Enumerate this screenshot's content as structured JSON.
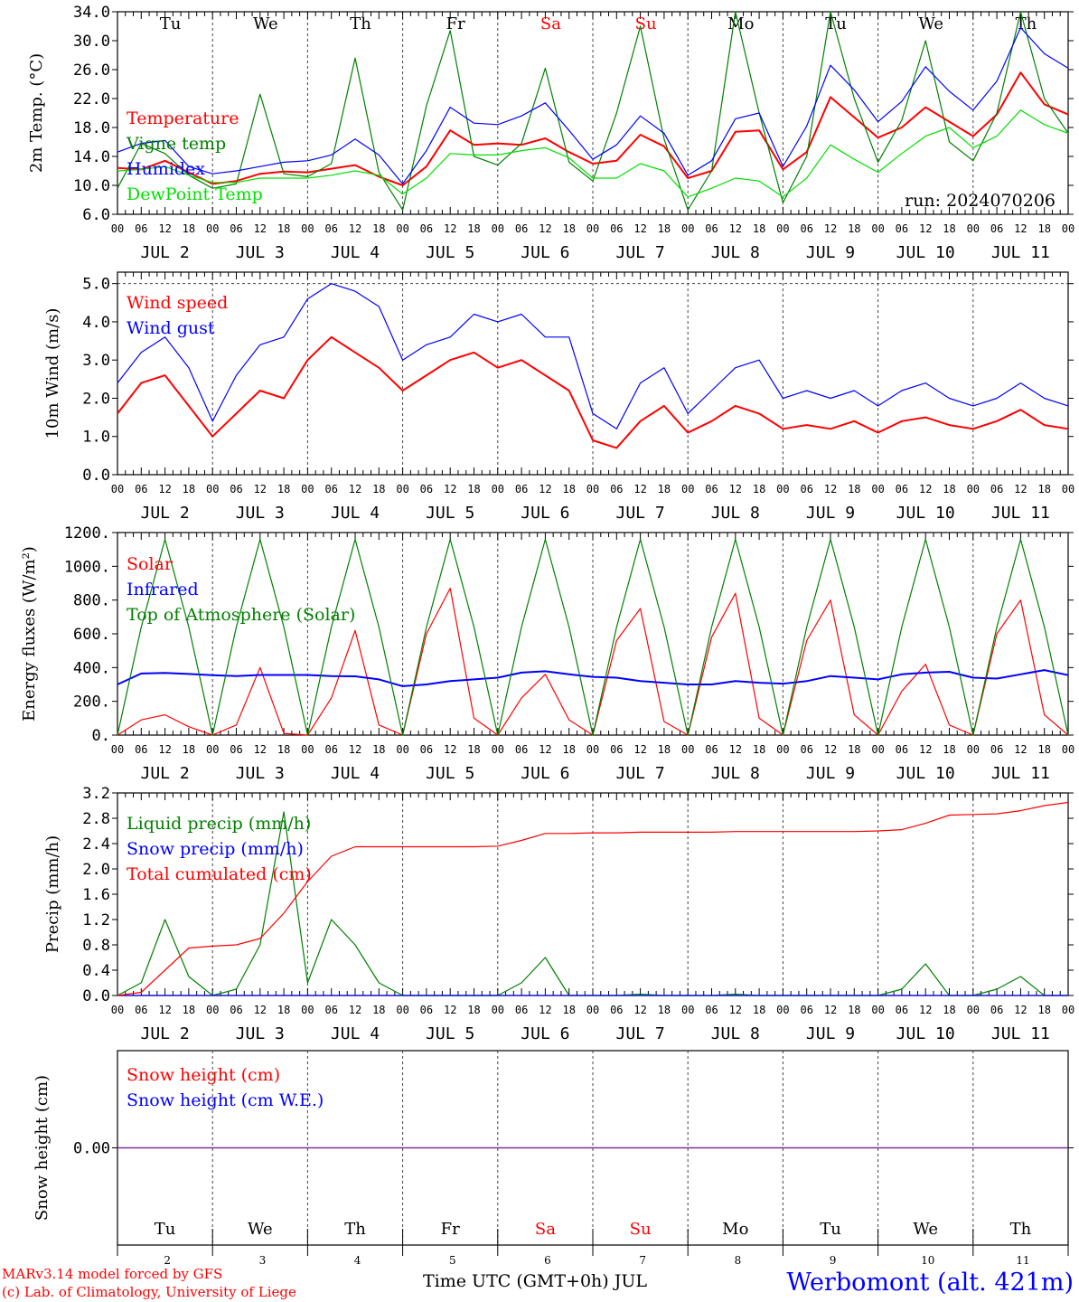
{
  "run_label": "run: 2024070206",
  "days": [
    {
      "dow": "Tu",
      "date": "JUL  2",
      "num": "2",
      "weekend": false
    },
    {
      "dow": "We",
      "date": "JUL  3",
      "num": "3",
      "weekend": false
    },
    {
      "dow": "Th",
      "date": "JUL  4",
      "num": "4",
      "weekend": false
    },
    {
      "dow": "Fr",
      "date": "JUL  5",
      "num": "5",
      "weekend": false
    },
    {
      "dow": "Sa",
      "date": "JUL  6",
      "num": "6",
      "weekend": true
    },
    {
      "dow": "Su",
      "date": "JUL  7",
      "num": "7",
      "weekend": true
    },
    {
      "dow": "Mo",
      "date": "JUL  8",
      "num": "8",
      "weekend": false
    },
    {
      "dow": "Tu",
      "date": "JUL  9",
      "num": "9",
      "weekend": false
    },
    {
      "dow": "We",
      "date": "JUL 10",
      "num": "10",
      "weekend": false
    },
    {
      "dow": "Th",
      "date": "JUL 11",
      "num": "11",
      "weekend": false
    }
  ],
  "hour_labels": [
    "00",
    "06",
    "12",
    "18"
  ],
  "footer": {
    "model": "MARv3.14 model forced by GFS",
    "copyright": "(c) Lab. of Climatology, University of Liege",
    "xlabel": "Time UTC (GMT+0h) JUL",
    "station": "Werbomont (alt. 421m)"
  },
  "colors": {
    "red": "#ff0000",
    "blue": "#0000ff",
    "green": "#008000",
    "lightgreen": "#00e000",
    "purple": "#7a2a9a"
  },
  "chart_data": [
    {
      "type": "line",
      "ylabel": "2m Temp. (°C)",
      "ylim": [
        6,
        34
      ],
      "yticks": [
        "6.0",
        "10.0",
        "14.0",
        "18.0",
        "22.0",
        "26.0",
        "30.0",
        "34.0"
      ],
      "x_unit": "hours since Jul 2 00 UTC",
      "x": [
        0,
        6,
        12,
        18,
        24,
        30,
        36,
        42,
        48,
        54,
        60,
        66,
        72,
        78,
        84,
        90,
        96,
        102,
        108,
        114,
        120,
        126,
        132,
        138,
        144,
        150,
        156,
        162,
        168,
        174,
        180,
        186,
        192,
        198,
        204,
        210,
        216,
        222,
        228,
        234,
        240
      ],
      "series": [
        {
          "name": "Temperature",
          "color": "red",
          "values": [
            12.4,
            12.2,
            13.4,
            11.8,
            10.2,
            10.6,
            11.6,
            11.9,
            11.8,
            12.3,
            12.8,
            11.2,
            10.0,
            12.6,
            17.6,
            15.6,
            15.8,
            15.6,
            16.5,
            14.6,
            13.0,
            13.4,
            17.0,
            15.4,
            11.0,
            12.0,
            17.4,
            17.6,
            12.2,
            14.6,
            22.2,
            19.4,
            16.6,
            18.0,
            20.8,
            18.8,
            16.8,
            19.8,
            25.6,
            21.2,
            19.8
          ]
        },
        {
          "name": "Vigne temp",
          "color": "green",
          "values": [
            9.6,
            15.8,
            14.4,
            11.4,
            9.6,
            10.2,
            22.6,
            11.6,
            11.2,
            13.0,
            27.6,
            11.8,
            6.6,
            21.0,
            31.4,
            14.0,
            12.8,
            15.8,
            26.2,
            13.2,
            10.6,
            20.0,
            32.0,
            16.4,
            6.6,
            12.0,
            34.0,
            20.0,
            7.6,
            14.0,
            34.0,
            22.0,
            13.2,
            19.0,
            30.0,
            16.0,
            13.4,
            20.0,
            34.0,
            22.0,
            17.2
          ]
        },
        {
          "name": "Humidex",
          "color": "blue",
          "values": [
            14.6,
            15.8,
            16.2,
            12.6,
            11.6,
            12.0,
            12.6,
            13.2,
            13.4,
            14.2,
            16.4,
            14.2,
            10.2,
            14.8,
            20.8,
            18.6,
            18.4,
            19.6,
            21.4,
            17.6,
            13.6,
            15.6,
            19.6,
            17.2,
            11.4,
            13.4,
            19.2,
            20.0,
            12.6,
            18.2,
            26.6,
            23.2,
            18.8,
            21.6,
            26.4,
            23.0,
            20.4,
            24.4,
            31.8,
            28.2,
            26.2
          ]
        },
        {
          "name": "DewPoint Temp",
          "color": "lightgreen",
          "values": [
            12.0,
            12.2,
            12.6,
            11.4,
            10.4,
            10.4,
            11.0,
            11.0,
            11.0,
            11.4,
            12.0,
            11.4,
            8.8,
            11.0,
            14.4,
            14.2,
            14.2,
            14.8,
            15.2,
            13.8,
            11.0,
            11.0,
            13.0,
            12.0,
            8.4,
            9.6,
            11.0,
            10.6,
            8.4,
            11.0,
            15.6,
            13.6,
            11.8,
            14.4,
            16.8,
            18.0,
            15.2,
            16.8,
            20.4,
            18.4,
            17.2
          ]
        }
      ]
    },
    {
      "type": "line",
      "ylabel": "10m Wind (m/s)",
      "ylim": [
        0,
        5.3
      ],
      "yticks": [
        "0.0",
        "1.0",
        "2.0",
        "3.0",
        "4.0",
        "5.0"
      ],
      "x_unit": "hours since Jul 2 00 UTC",
      "x": [
        0,
        6,
        12,
        18,
        24,
        30,
        36,
        42,
        48,
        54,
        60,
        66,
        72,
        78,
        84,
        90,
        96,
        102,
        108,
        114,
        120,
        126,
        132,
        138,
        144,
        150,
        156,
        162,
        168,
        174,
        180,
        186,
        192,
        198,
        204,
        210,
        216,
        222,
        228,
        234,
        240
      ],
      "series": [
        {
          "name": "Wind speed",
          "color": "red",
          "values": [
            1.6,
            2.4,
            2.6,
            1.8,
            1.0,
            1.6,
            2.2,
            2.0,
            3.0,
            3.6,
            3.2,
            2.8,
            2.2,
            2.6,
            3.0,
            3.2,
            2.8,
            3.0,
            2.6,
            2.2,
            0.9,
            0.7,
            1.4,
            1.8,
            1.1,
            1.4,
            1.8,
            1.6,
            1.2,
            1.3,
            1.2,
            1.4,
            1.1,
            1.4,
            1.5,
            1.3,
            1.2,
            1.4,
            1.7,
            1.3,
            1.2
          ]
        },
        {
          "name": "Wind gust",
          "color": "blue",
          "values": [
            2.4,
            3.2,
            3.6,
            2.8,
            1.4,
            2.6,
            3.4,
            3.6,
            4.6,
            5.0,
            4.8,
            4.4,
            3.0,
            3.4,
            3.6,
            4.2,
            4.0,
            4.2,
            3.6,
            3.6,
            1.6,
            1.2,
            2.4,
            2.8,
            1.6,
            2.2,
            2.8,
            3.0,
            2.0,
            2.2,
            2.0,
            2.2,
            1.8,
            2.2,
            2.4,
            2.0,
            1.8,
            2.0,
            2.4,
            2.0,
            1.8
          ]
        }
      ]
    },
    {
      "type": "line",
      "ylabel": "Energy fluxes (W/m²)",
      "ylim": [
        0,
        1200
      ],
      "yticks": [
        "0.",
        "200.",
        "400.",
        "600.",
        "800.",
        "1000.",
        "1200."
      ],
      "x_unit": "hours since Jul 2 00 UTC",
      "x": [
        0,
        6,
        12,
        18,
        24,
        30,
        36,
        42,
        48,
        54,
        60,
        66,
        72,
        78,
        84,
        90,
        96,
        102,
        108,
        114,
        120,
        126,
        132,
        138,
        144,
        150,
        156,
        162,
        168,
        174,
        180,
        186,
        192,
        198,
        204,
        210,
        216,
        222,
        228,
        234,
        240
      ],
      "series": [
        {
          "name": "Solar",
          "color": "red",
          "values": [
            0,
            90,
            120,
            50,
            0,
            60,
            400,
            10,
            0,
            220,
            620,
            60,
            0,
            600,
            870,
            100,
            0,
            220,
            360,
            90,
            0,
            560,
            750,
            80,
            0,
            580,
            840,
            100,
            0,
            560,
            800,
            120,
            0,
            260,
            420,
            60,
            0,
            600,
            800,
            120,
            0
          ]
        },
        {
          "name": "Infrared",
          "color": "blue",
          "values": [
            300,
            365,
            368,
            362,
            355,
            350,
            356,
            356,
            356,
            350,
            348,
            330,
            290,
            300,
            320,
            330,
            340,
            370,
            378,
            360,
            345,
            340,
            320,
            310,
            300,
            300,
            320,
            310,
            305,
            320,
            350,
            340,
            330,
            360,
            370,
            375,
            340,
            335,
            360,
            385,
            355
          ]
        },
        {
          "name": "Top of Atmosphere (Solar)",
          "color": "green",
          "values": [
            0,
            640,
            1160,
            640,
            0,
            640,
            1160,
            640,
            0,
            640,
            1160,
            640,
            0,
            640,
            1160,
            640,
            0,
            640,
            1160,
            640,
            0,
            640,
            1160,
            640,
            0,
            640,
            1160,
            640,
            0,
            640,
            1160,
            640,
            0,
            640,
            1160,
            640,
            0,
            640,
            1160,
            640,
            0
          ]
        }
      ]
    },
    {
      "type": "line",
      "ylabel": "Precip (mm/h)",
      "ylim": [
        0,
        3.2
      ],
      "yticks": [
        "0.0",
        "0.4",
        "0.8",
        "1.2",
        "1.6",
        "2.0",
        "2.4",
        "2.8",
        "3.2"
      ],
      "x_unit": "hours since Jul 2 00 UTC",
      "x": [
        0,
        6,
        12,
        18,
        24,
        30,
        36,
        42,
        48,
        54,
        60,
        66,
        72,
        78,
        84,
        90,
        96,
        102,
        108,
        114,
        120,
        126,
        132,
        138,
        144,
        150,
        156,
        162,
        168,
        174,
        180,
        186,
        192,
        198,
        204,
        210,
        216,
        222,
        228,
        234,
        240
      ],
      "series": [
        {
          "name": "Liquid precip (mm/h)",
          "color": "green",
          "values": [
            0,
            0.2,
            1.2,
            0.3,
            0,
            0.1,
            0.8,
            2.9,
            0.2,
            1.2,
            0.8,
            0.2,
            0,
            0,
            0,
            0,
            0,
            0.2,
            0.6,
            0,
            0,
            0,
            0.02,
            0,
            0,
            0,
            0.02,
            0,
            0,
            0,
            0,
            0,
            0,
            0.1,
            0.5,
            0,
            0,
            0.1,
            0.3,
            0,
            0
          ]
        },
        {
          "name": "Snow precip (mm/h)",
          "color": "blue",
          "values": [
            0,
            0,
            0,
            0,
            0,
            0,
            0,
            0,
            0,
            0,
            0,
            0,
            0,
            0,
            0,
            0,
            0,
            0,
            0,
            0,
            0,
            0,
            0,
            0,
            0,
            0,
            0,
            0,
            0,
            0,
            0,
            0,
            0,
            0,
            0,
            0,
            0,
            0,
            0,
            0,
            0
          ]
        },
        {
          "name": "Total cumulated (cm)",
          "color": "red",
          "values": [
            0,
            0.05,
            0.4,
            0.75,
            0.78,
            0.8,
            0.9,
            1.3,
            1.8,
            2.2,
            2.35,
            2.35,
            2.35,
            2.35,
            2.35,
            2.35,
            2.36,
            2.45,
            2.56,
            2.56,
            2.57,
            2.57,
            2.58,
            2.58,
            2.58,
            2.58,
            2.59,
            2.59,
            2.59,
            2.59,
            2.59,
            2.59,
            2.6,
            2.62,
            2.72,
            2.85,
            2.86,
            2.87,
            2.92,
            3.0,
            3.05
          ]
        }
      ]
    },
    {
      "type": "line",
      "ylabel": "Snow height (cm)",
      "ylim": [
        -1,
        1
      ],
      "yticks": [
        "0.00"
      ],
      "x_unit": "hours since Jul 2 00 UTC",
      "x": [
        0,
        240
      ],
      "series": [
        {
          "name": "Snow height (cm)",
          "color": "red",
          "values": [
            0,
            0
          ]
        },
        {
          "name": "Snow height (cm W.E.)",
          "color": "blue",
          "values": [
            0,
            0
          ]
        }
      ]
    }
  ]
}
